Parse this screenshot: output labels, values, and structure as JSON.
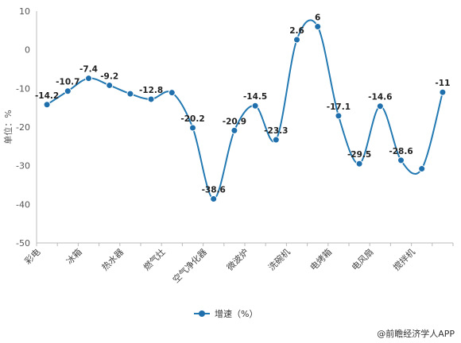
{
  "chart_data": {
    "type": "line",
    "categories": [
      "彩电",
      "",
      "冰箱",
      "",
      "热水器",
      "",
      "燃气灶",
      "",
      "空气净化器",
      "",
      "微波炉",
      "",
      "洗碗机",
      "",
      "电烤箱",
      "",
      "电风扇",
      "",
      "搅拌机",
      ""
    ],
    "series": [
      {
        "name": "增速（%）",
        "values": [
          -14.2,
          -10.7,
          -7.4,
          -9.2,
          -11.4,
          -12.8,
          -11.1,
          -20.2,
          -38.6,
          -20.9,
          -14.5,
          -23.3,
          2.6,
          6.0,
          -17.1,
          -29.5,
          -14.6,
          -28.6,
          -30.8,
          -11.0
        ],
        "labels": [
          "-14.2",
          "-10.7",
          "-7.4",
          "-9.2",
          "",
          "-12.8",
          "",
          "-20.2",
          "-38.6",
          "-20.9",
          "-14.5",
          "-23.3",
          "2.6",
          "6",
          "-17.1",
          "-29.5",
          "-14.6",
          "-28.6",
          "",
          "-11"
        ]
      }
    ],
    "ylabel": "单位：%",
    "ylim": [
      -50,
      10
    ],
    "yticks": [
      10,
      0,
      -10,
      -20,
      -30,
      -40,
      -50
    ],
    "grid": false,
    "legend": "bottom-center",
    "colors": {
      "line": "#2379b2",
      "point": "#1f6fad",
      "axis": "#bbbbbb"
    }
  },
  "footer": {
    "credit": "@前瞻经济学人APP"
  }
}
